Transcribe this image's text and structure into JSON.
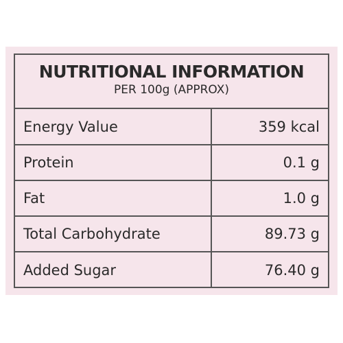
{
  "header": {
    "title": "NUTRITIONAL INFORMATION",
    "subtitle": "PER 100g (APPROX)"
  },
  "table": {
    "rows": [
      [
        "Energy Value",
        "359 kcal"
      ],
      [
        "Protein",
        "0.1 g"
      ],
      [
        "Fat",
        "1.0 g"
      ],
      [
        "Total Carbohydrate",
        "89.73 g"
      ],
      [
        "Added Sugar",
        "76.40 g"
      ]
    ]
  }
}
